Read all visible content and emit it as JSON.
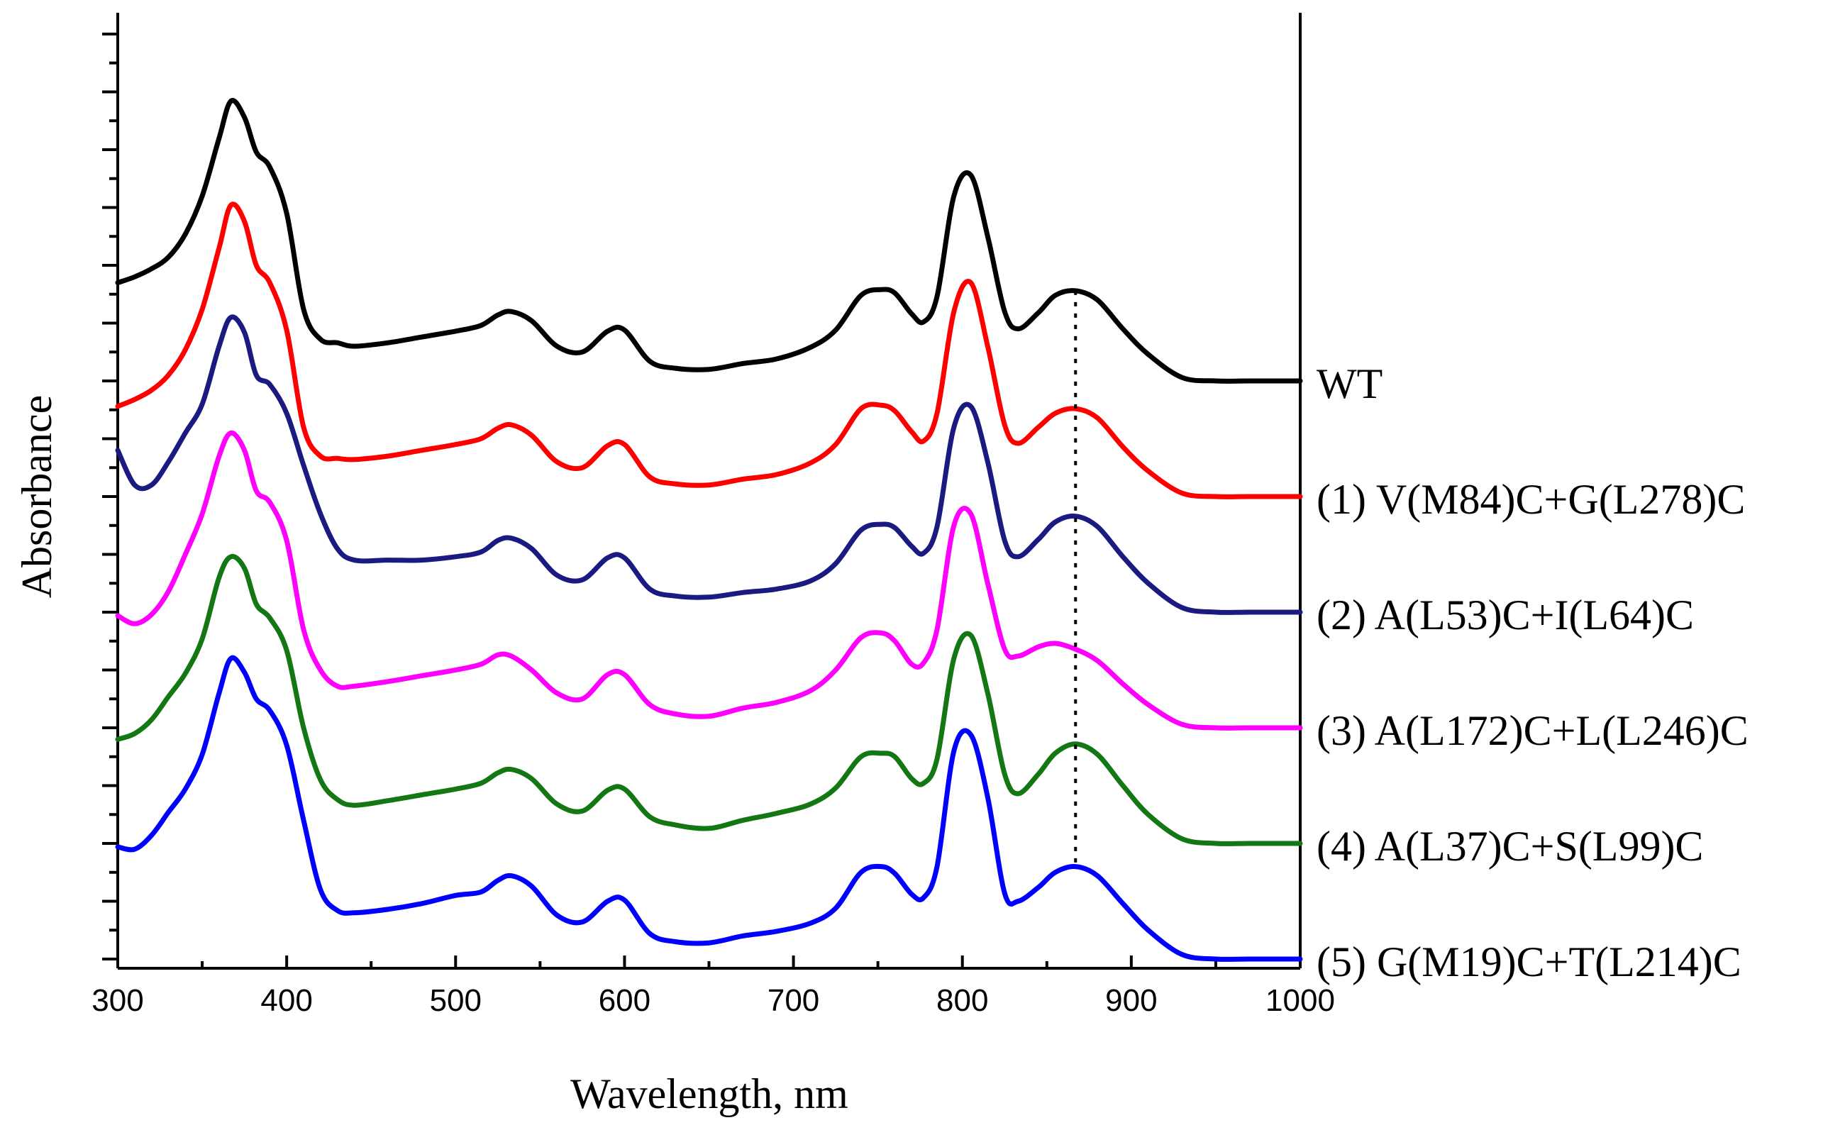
{
  "chart_data": {
    "type": "line",
    "title": "",
    "xlabel": "Wavelength, nm",
    "ylabel": "Absorbance",
    "xlim": [
      300,
      1000
    ],
    "ylim": [
      0,
      8.0
    ],
    "xticks": [
      "300",
      "400",
      "500",
      "600",
      "700",
      "800",
      "900",
      "1000"
    ],
    "y_tick_labels_shown": false,
    "grid": false,
    "legend": "right, inline labels",
    "reference_line": {
      "x": 867,
      "style": "dotted"
    },
    "series": [
      {
        "name": "WT",
        "color": "#000000",
        "offset": 5.0,
        "x": [
          300,
          310,
          320,
          330,
          340,
          350,
          360,
          367,
          375,
          382,
          390,
          400,
          410,
          420,
          430,
          440,
          460,
          480,
          500,
          515,
          525,
          533,
          545,
          560,
          575,
          590,
          600,
          615,
          630,
          650,
          670,
          690,
          710,
          725,
          740,
          752,
          760,
          770,
          777,
          785,
          795,
          805,
          815,
          825,
          833,
          845,
          855,
          867,
          880,
          895,
          910,
          930,
          950,
          970,
          1000
        ],
        "y": [
          0.85,
          0.9,
          0.97,
          1.07,
          1.27,
          1.6,
          2.1,
          2.42,
          2.28,
          1.98,
          1.85,
          1.45,
          0.62,
          0.36,
          0.33,
          0.3,
          0.33,
          0.38,
          0.43,
          0.48,
          0.57,
          0.6,
          0.52,
          0.3,
          0.25,
          0.43,
          0.44,
          0.17,
          0.11,
          0.1,
          0.15,
          0.19,
          0.29,
          0.44,
          0.74,
          0.79,
          0.76,
          0.58,
          0.51,
          0.73,
          1.6,
          1.78,
          1.25,
          0.6,
          0.45,
          0.59,
          0.74,
          0.78,
          0.7,
          0.45,
          0.23,
          0.03,
          0.0,
          0.0,
          0.0
        ]
      },
      {
        "name": "(1) V(M84)C+G(L278)C",
        "color": "#ff0000",
        "offset": 4.0,
        "x": [
          300,
          310,
          320,
          330,
          340,
          350,
          360,
          367,
          375,
          382,
          390,
          400,
          410,
          420,
          430,
          440,
          460,
          480,
          500,
          515,
          525,
          533,
          545,
          560,
          575,
          590,
          600,
          615,
          630,
          650,
          670,
          690,
          710,
          725,
          740,
          752,
          760,
          770,
          777,
          785,
          795,
          805,
          815,
          825,
          833,
          845,
          855,
          867,
          880,
          895,
          910,
          930,
          950,
          970,
          1000
        ],
        "y": [
          0.78,
          0.84,
          0.92,
          1.05,
          1.27,
          1.62,
          2.15,
          2.52,
          2.38,
          2.0,
          1.85,
          1.44,
          0.6,
          0.35,
          0.33,
          0.32,
          0.35,
          0.4,
          0.45,
          0.5,
          0.59,
          0.62,
          0.53,
          0.3,
          0.25,
          0.44,
          0.45,
          0.17,
          0.11,
          0.1,
          0.15,
          0.19,
          0.29,
          0.45,
          0.76,
          0.79,
          0.74,
          0.56,
          0.48,
          0.72,
          1.6,
          1.85,
          1.3,
          0.62,
          0.46,
          0.6,
          0.72,
          0.76,
          0.68,
          0.43,
          0.22,
          0.03,
          0.0,
          0.0,
          0.0
        ]
      },
      {
        "name": "(2) A(L53)C+I(L64)C",
        "color": "#1a1a80",
        "offset": 3.0,
        "x": [
          300,
          310,
          320,
          330,
          340,
          350,
          360,
          367,
          375,
          382,
          390,
          400,
          410,
          420,
          430,
          440,
          460,
          480,
          500,
          515,
          525,
          533,
          545,
          560,
          575,
          590,
          600,
          615,
          630,
          650,
          670,
          690,
          710,
          725,
          740,
          752,
          760,
          770,
          777,
          785,
          795,
          805,
          815,
          825,
          833,
          845,
          855,
          867,
          880,
          895,
          910,
          930,
          950,
          970,
          1000
        ],
        "y": [
          1.4,
          1.1,
          1.1,
          1.3,
          1.55,
          1.8,
          2.3,
          2.55,
          2.42,
          2.05,
          1.97,
          1.72,
          1.27,
          0.85,
          0.55,
          0.45,
          0.45,
          0.45,
          0.48,
          0.52,
          0.62,
          0.64,
          0.55,
          0.32,
          0.28,
          0.47,
          0.47,
          0.2,
          0.14,
          0.13,
          0.17,
          0.2,
          0.27,
          0.42,
          0.71,
          0.76,
          0.73,
          0.57,
          0.51,
          0.74,
          1.6,
          1.78,
          1.3,
          0.62,
          0.48,
          0.63,
          0.78,
          0.83,
          0.74,
          0.48,
          0.25,
          0.04,
          0.0,
          0.0,
          0.0
        ]
      },
      {
        "name": "(3) A(L172)C+L(L246)C",
        "color": "#ff00ff",
        "offset": 2.0,
        "x": [
          300,
          310,
          320,
          330,
          340,
          350,
          360,
          367,
          375,
          382,
          390,
          400,
          410,
          420,
          430,
          440,
          460,
          480,
          500,
          515,
          525,
          533,
          545,
          560,
          575,
          590,
          600,
          615,
          630,
          650,
          670,
          690,
          710,
          725,
          740,
          752,
          760,
          770,
          777,
          785,
          795,
          805,
          815,
          825,
          833,
          845,
          855,
          867,
          880,
          895,
          910,
          930,
          950,
          970,
          1000
        ],
        "y": [
          0.97,
          0.9,
          0.98,
          1.18,
          1.5,
          1.85,
          2.35,
          2.55,
          2.4,
          2.05,
          1.95,
          1.62,
          0.85,
          0.5,
          0.36,
          0.36,
          0.4,
          0.45,
          0.5,
          0.55,
          0.63,
          0.62,
          0.5,
          0.3,
          0.25,
          0.46,
          0.46,
          0.2,
          0.12,
          0.1,
          0.17,
          0.22,
          0.32,
          0.5,
          0.78,
          0.82,
          0.75,
          0.55,
          0.56,
          0.85,
          1.75,
          1.85,
          1.25,
          0.68,
          0.62,
          0.7,
          0.73,
          0.68,
          0.58,
          0.38,
          0.2,
          0.03,
          0.0,
          0.0,
          0.0
        ]
      },
      {
        "name": "(4) A(L37)C+S(L99)C",
        "color": "#137713",
        "offset": 1.0,
        "x": [
          300,
          310,
          320,
          330,
          340,
          350,
          360,
          367,
          375,
          382,
          390,
          400,
          410,
          420,
          430,
          440,
          460,
          480,
          500,
          515,
          525,
          533,
          545,
          560,
          575,
          590,
          600,
          615,
          630,
          650,
          670,
          690,
          710,
          725,
          740,
          752,
          760,
          770,
          777,
          785,
          795,
          805,
          815,
          825,
          833,
          845,
          855,
          867,
          880,
          895,
          910,
          930,
          950,
          970,
          1000
        ],
        "y": [
          0.9,
          0.95,
          1.07,
          1.27,
          1.47,
          1.77,
          2.3,
          2.48,
          2.38,
          2.07,
          1.95,
          1.67,
          1.0,
          0.55,
          0.38,
          0.33,
          0.37,
          0.42,
          0.47,
          0.52,
          0.61,
          0.64,
          0.56,
          0.34,
          0.28,
          0.46,
          0.47,
          0.23,
          0.16,
          0.13,
          0.2,
          0.26,
          0.34,
          0.48,
          0.75,
          0.78,
          0.75,
          0.56,
          0.52,
          0.73,
          1.6,
          1.8,
          1.3,
          0.6,
          0.43,
          0.6,
          0.78,
          0.86,
          0.77,
          0.5,
          0.25,
          0.04,
          0.0,
          0.0,
          0.0
        ]
      },
      {
        "name": "(5) G(M19)C+T(L214)C",
        "color": "#0000ff",
        "offset": 0.0,
        "x": [
          300,
          310,
          320,
          330,
          340,
          350,
          360,
          367,
          375,
          382,
          390,
          400,
          410,
          420,
          430,
          440,
          460,
          480,
          500,
          515,
          525,
          533,
          545,
          560,
          575,
          590,
          600,
          615,
          630,
          650,
          670,
          690,
          710,
          725,
          740,
          752,
          760,
          770,
          777,
          785,
          795,
          805,
          815,
          825,
          833,
          845,
          855,
          867,
          880,
          895,
          910,
          930,
          950,
          970,
          1000
        ],
        "y": [
          0.97,
          0.95,
          1.07,
          1.27,
          1.47,
          1.77,
          2.3,
          2.6,
          2.48,
          2.25,
          2.15,
          1.85,
          1.2,
          0.6,
          0.42,
          0.4,
          0.43,
          0.48,
          0.55,
          0.58,
          0.68,
          0.72,
          0.63,
          0.38,
          0.32,
          0.5,
          0.51,
          0.22,
          0.15,
          0.14,
          0.2,
          0.24,
          0.31,
          0.44,
          0.75,
          0.8,
          0.74,
          0.56,
          0.53,
          0.8,
          1.8,
          1.94,
          1.4,
          0.57,
          0.5,
          0.62,
          0.75,
          0.8,
          0.72,
          0.48,
          0.25,
          0.04,
          0.0,
          0.0,
          0.0
        ]
      }
    ]
  }
}
